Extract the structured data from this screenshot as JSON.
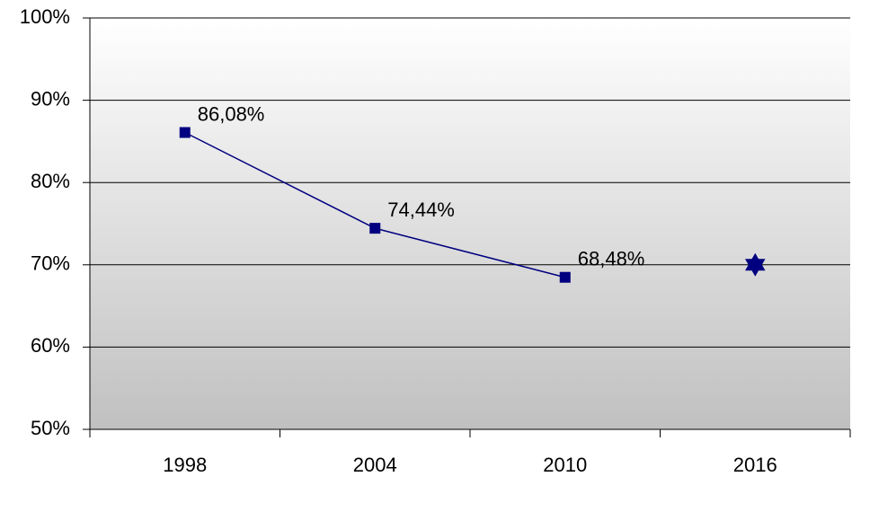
{
  "chart_data": {
    "type": "line",
    "categories": [
      "1998",
      "2004",
      "2010",
      "2016"
    ],
    "series": [
      {
        "color": "#000080",
        "marker": "square",
        "values": [
          86.08,
          74.44,
          68.48,
          null
        ],
        "value_labels": [
          "86,08%",
          "74,44%",
          "68,48%",
          null
        ]
      },
      {
        "color": "#000080",
        "marker": "star",
        "values": [
          null,
          null,
          null,
          70
        ]
      }
    ],
    "ylim": [
      50,
      100
    ],
    "yticks": [
      {
        "value": 50,
        "label": "50%"
      },
      {
        "value": 60,
        "label": "60%"
      },
      {
        "value": 70,
        "label": "70%"
      },
      {
        "value": 80,
        "label": "80%"
      },
      {
        "value": 90,
        "label": "90%"
      },
      {
        "value": 100,
        "label": "100%"
      }
    ],
    "grid": true
  }
}
